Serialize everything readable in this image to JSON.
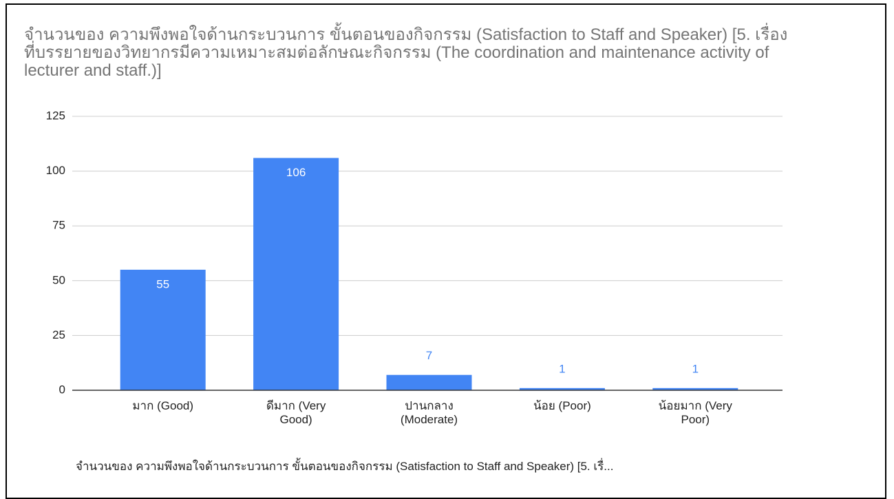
{
  "chart_data": {
    "type": "bar",
    "title": "จำนวนของ ความพึงพอใจด้านกระบวนการ ขั้นตอนของกิจกรรม  (Satisfaction to Staff and Speaker) [5. เรื่องที่บรรยายของวิทยากรมีความเหมาะสมต่อลักษณะกิจกรรม (The coordination and maintenance activity of lecturer and staff.)]",
    "categories": [
      "มาก (Good)",
      "ดีมาก (Very Good)",
      "ปานกลาง (Moderate)",
      "น้อย (Poor)",
      "น้อยมาก (Very Poor)"
    ],
    "series": [
      {
        "name": "จำนวนของ ความพึงพอใจด้านกระบวนการ ขั้นตอนของกิจกรรม  (Satisfaction to Staff and Speaker) [5. เรื่...",
        "color": "#4285f4",
        "values": [
          55,
          106,
          7,
          1,
          1
        ]
      }
    ],
    "ylim": [
      0,
      125
    ],
    "yticks": [
      0,
      25,
      50,
      75,
      100,
      125
    ],
    "grid": true
  }
}
